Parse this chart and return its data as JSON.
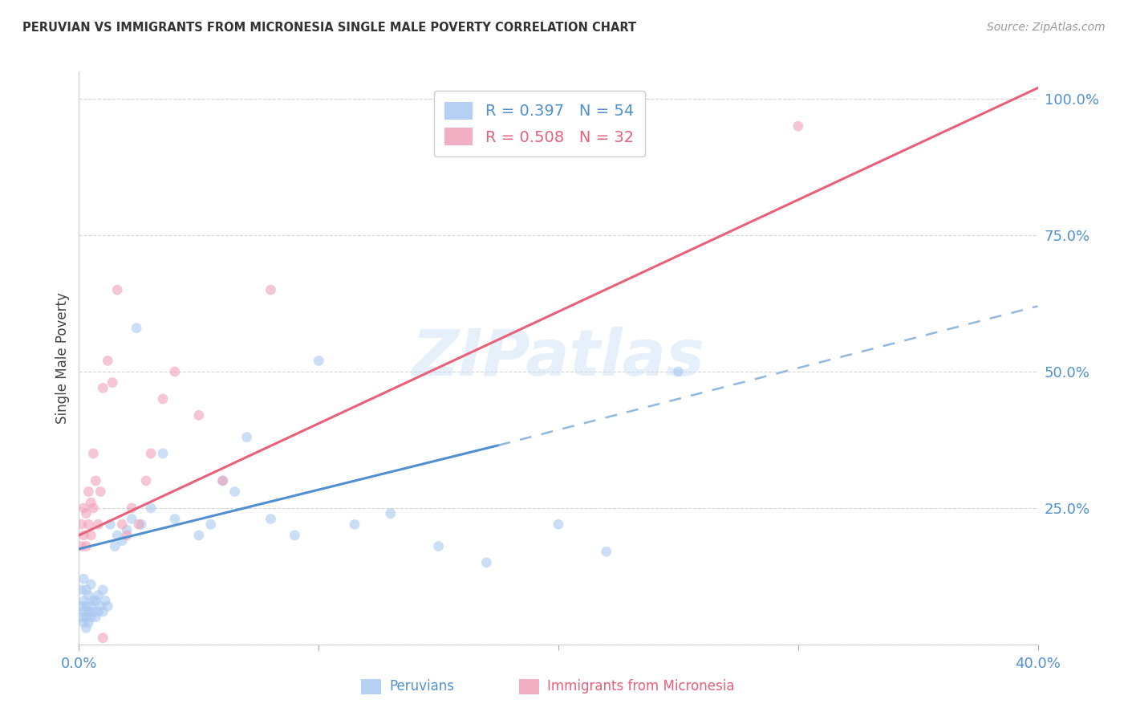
{
  "title": "PERUVIAN VS IMMIGRANTS FROM MICRONESIA SINGLE MALE POVERTY CORRELATION CHART",
  "source": "Source: ZipAtlas.com",
  "ylabel": "Single Male Poverty",
  "watermark": "ZIPatlas",
  "blue_color": "#a8c8f0",
  "pink_color": "#f0a0b8",
  "line_blue_color": "#5090d0",
  "line_pink_color": "#e8607a",
  "dashed_line_color": "#90b8e0",
  "legend_label1": "R = 0.397   N = 54",
  "legend_label2": "R = 0.508   N = 32",
  "xlim": [
    0.0,
    0.4
  ],
  "ylim": [
    0.0,
    1.05
  ],
  "blue_line_x": [
    0.0,
    0.175
  ],
  "blue_line_y": [
    0.175,
    0.365
  ],
  "dash_line_x": [
    0.175,
    0.4
  ],
  "dash_line_y": [
    0.365,
    0.62
  ],
  "pink_line_x": [
    0.0,
    0.4
  ],
  "pink_line_y": [
    0.2,
    1.02
  ],
  "peru_x": [
    0.001,
    0.001,
    0.001,
    0.002,
    0.002,
    0.002,
    0.002,
    0.003,
    0.003,
    0.003,
    0.003,
    0.004,
    0.004,
    0.004,
    0.005,
    0.005,
    0.005,
    0.006,
    0.006,
    0.007,
    0.007,
    0.008,
    0.008,
    0.009,
    0.01,
    0.01,
    0.011,
    0.012,
    0.013,
    0.015,
    0.016,
    0.018,
    0.02,
    0.022,
    0.024,
    0.026,
    0.03,
    0.035,
    0.04,
    0.05,
    0.055,
    0.06,
    0.065,
    0.07,
    0.08,
    0.09,
    0.1,
    0.115,
    0.13,
    0.15,
    0.17,
    0.2,
    0.22,
    0.25
  ],
  "peru_y": [
    0.05,
    0.07,
    0.1,
    0.04,
    0.06,
    0.08,
    0.12,
    0.03,
    0.05,
    0.07,
    0.1,
    0.04,
    0.06,
    0.09,
    0.05,
    0.07,
    0.11,
    0.06,
    0.08,
    0.05,
    0.08,
    0.06,
    0.09,
    0.07,
    0.06,
    0.1,
    0.08,
    0.07,
    0.22,
    0.18,
    0.2,
    0.19,
    0.21,
    0.23,
    0.58,
    0.22,
    0.25,
    0.35,
    0.23,
    0.2,
    0.22,
    0.3,
    0.28,
    0.38,
    0.23,
    0.2,
    0.52,
    0.22,
    0.24,
    0.18,
    0.15,
    0.22,
    0.17,
    0.5
  ],
  "micro_x": [
    0.001,
    0.001,
    0.002,
    0.002,
    0.003,
    0.003,
    0.004,
    0.004,
    0.005,
    0.005,
    0.006,
    0.006,
    0.007,
    0.008,
    0.009,
    0.01,
    0.012,
    0.014,
    0.016,
    0.018,
    0.02,
    0.022,
    0.025,
    0.028,
    0.03,
    0.035,
    0.04,
    0.05,
    0.06,
    0.08,
    0.3,
    0.01
  ],
  "micro_y": [
    0.18,
    0.22,
    0.2,
    0.25,
    0.18,
    0.24,
    0.22,
    0.28,
    0.2,
    0.26,
    0.25,
    0.35,
    0.3,
    0.22,
    0.28,
    0.47,
    0.52,
    0.48,
    0.65,
    0.22,
    0.2,
    0.25,
    0.22,
    0.3,
    0.35,
    0.45,
    0.5,
    0.42,
    0.3,
    0.65,
    0.95,
    0.012
  ]
}
